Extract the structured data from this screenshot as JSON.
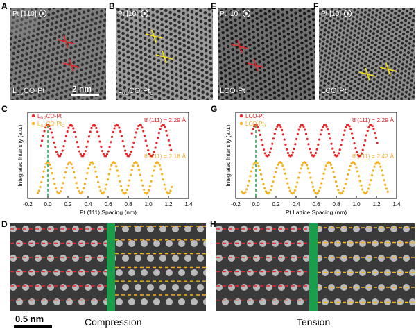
{
  "panels": {
    "A": {
      "letter": "A",
      "orientation": "Pt [1̅1̅0]",
      "orientation_main": "Pt [1",
      "orientation_bar": "1",
      "orientation_end": "0]",
      "label_main": "L",
      "label_sub": "0.2",
      "label_rest": "CO-Pt",
      "scale": "2 nm"
    },
    "B": {
      "letter": "B",
      "orientation": "Pt [1̅0]",
      "label_main": "L",
      "label_sub": "0.2",
      "label_rest": "CO-Pt",
      "label_sub2": "C"
    },
    "E": {
      "letter": "E",
      "orientation": "Pt [1̅0]",
      "label_main": "LCO-Pt"
    },
    "F": {
      "letter": "F",
      "orientation": "Pt [1̅0]",
      "label_main": "LCO-Pt",
      "label_sub2": "T"
    },
    "C": {
      "letter": "C"
    },
    "G": {
      "letter": "G"
    },
    "D": {
      "letter": "D",
      "scale": "0.5 nm",
      "caption": "Compression"
    },
    "H": {
      "letter": "H",
      "caption": "Tension"
    }
  },
  "chart_data": [
    {
      "id": "C",
      "type": "scatter",
      "xlabel": "Pt (111) Spacing (nm)",
      "ylabel": "Integrated Intensity (a.u.)",
      "xlim": [
        -0.2,
        1.4
      ],
      "xticks": [
        "-0.2",
        "0.0",
        "0.2",
        "0.4",
        "0.6",
        "0.8",
        "1.0",
        "1.2",
        "1.4"
      ],
      "legend": [
        {
          "name_main": "L",
          "name_sub": "0.2",
          "name_rest": "CO-Pt",
          "name_sub2": "",
          "color": "#e8262b"
        },
        {
          "name_main": "L",
          "name_sub": "0.2",
          "name_rest": "CO-Pt",
          "name_sub2": "C",
          "color": "#f5b120"
        }
      ],
      "annotations": [
        {
          "text": "d̅ (111) = 2.29 Å",
          "color": "#e8262b"
        },
        {
          "text": "d̅ (111) = 2.18 Å",
          "color": "#f5b120"
        }
      ],
      "series": [
        {
          "color": "#e8262b",
          "period": 0.229,
          "x_start": -0.07,
          "x_end": 1.23,
          "offset": 1.0
        },
        {
          "color": "#f5b120",
          "period": 0.218,
          "x_start": -0.1,
          "x_end": 1.24,
          "offset": 0.0
        }
      ],
      "marker_x": 0.0
    },
    {
      "id": "G",
      "type": "scatter",
      "xlabel": "Pt Lattice Spacing (nm)",
      "ylabel": "Integrated Intensity (a.u.)",
      "xlim": [
        -0.2,
        1.4
      ],
      "xticks": [
        "-0.2",
        "0.0",
        "0.2",
        "0.4",
        "0.6",
        "0.8",
        "1.0",
        "1.2",
        "1.4"
      ],
      "legend": [
        {
          "name_main": "LCO-Pt",
          "name_sub": "",
          "name_rest": "",
          "name_sub2": "",
          "color": "#e8262b"
        },
        {
          "name_main": "LCO-Pt",
          "name_sub": "",
          "name_rest": "",
          "name_sub2": "T",
          "color": "#f5b120"
        }
      ],
      "annotations": [
        {
          "text": "d̅ (111) = 2.29 Å",
          "color": "#e8262b"
        },
        {
          "text": "d̅ (111) = 2.42 Å",
          "color": "#f5b120"
        }
      ],
      "series": [
        {
          "color": "#e8262b",
          "period": 0.229,
          "x_start": -0.04,
          "x_end": 1.22,
          "offset": 1.0
        },
        {
          "color": "#f5b120",
          "period": 0.242,
          "x_start": -0.14,
          "x_end": 1.32,
          "offset": 0.0
        }
      ],
      "marker_x": 0.0
    }
  ]
}
